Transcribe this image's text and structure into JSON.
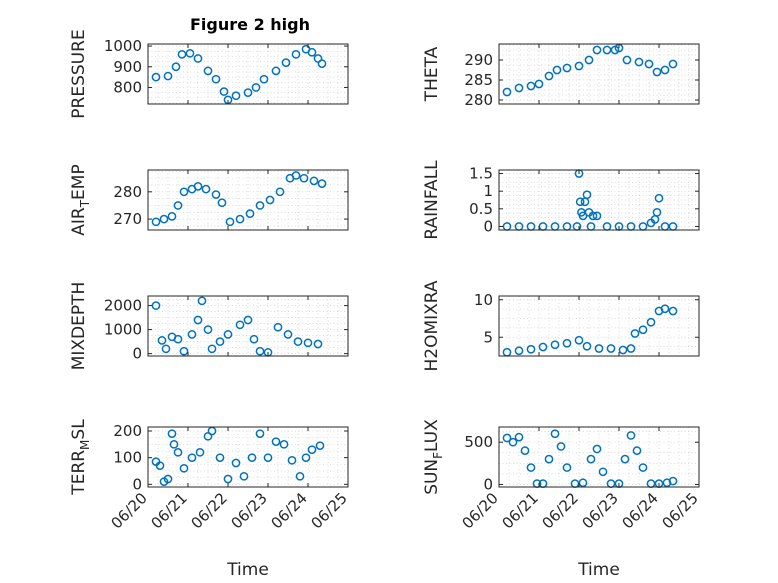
{
  "figure_title": "Figure 2 high",
  "colors": {
    "marker": "#0072BD",
    "axis": "#262626"
  },
  "chart_data": [
    {
      "type": "scatter",
      "id": "pressure",
      "ylabel": "PRESSURE",
      "title": "Figure 2 high",
      "xlim": [
        "06/20",
        "06/25"
      ],
      "ylim": [
        720,
        1010
      ],
      "yticks": [
        800,
        900,
        1000
      ],
      "xticklabels": [],
      "xlabel": "",
      "grid": true,
      "marker": "circle",
      "points": [
        [
          20.2,
          850
        ],
        [
          20.5,
          855
        ],
        [
          20.7,
          900
        ],
        [
          20.85,
          960
        ],
        [
          21.05,
          965
        ],
        [
          21.25,
          940
        ],
        [
          21.5,
          880
        ],
        [
          21.7,
          840
        ],
        [
          21.9,
          780
        ],
        [
          22.0,
          740
        ],
        [
          22.2,
          760
        ],
        [
          22.5,
          775
        ],
        [
          22.7,
          800
        ],
        [
          22.9,
          840
        ],
        [
          23.2,
          880
        ],
        [
          23.45,
          920
        ],
        [
          23.7,
          960
        ],
        [
          23.95,
          985
        ],
        [
          24.1,
          970
        ],
        [
          24.25,
          940
        ],
        [
          24.35,
          915
        ]
      ]
    },
    {
      "type": "scatter",
      "id": "theta",
      "ylabel": "THETA",
      "xlim": [
        "06/20",
        "06/25"
      ],
      "ylim": [
        279,
        294
      ],
      "yticks": [
        280,
        285,
        290
      ],
      "xticklabels": [],
      "xlabel": "",
      "grid": true,
      "marker": "circle",
      "points": [
        [
          20.2,
          282
        ],
        [
          20.5,
          283
        ],
        [
          20.8,
          283.5
        ],
        [
          21.0,
          284
        ],
        [
          21.25,
          286
        ],
        [
          21.45,
          287.5
        ],
        [
          21.7,
          288
        ],
        [
          22.0,
          288.5
        ],
        [
          22.25,
          290
        ],
        [
          22.45,
          292.5
        ],
        [
          22.7,
          292.5
        ],
        [
          22.9,
          292.5
        ],
        [
          23.0,
          293
        ],
        [
          23.2,
          290
        ],
        [
          23.5,
          289.5
        ],
        [
          23.75,
          289
        ],
        [
          23.95,
          287
        ],
        [
          24.15,
          287.5
        ],
        [
          24.35,
          289
        ]
      ]
    },
    {
      "type": "scatter",
      "id": "air_temp",
      "ylabel": "AIR_TEMP",
      "xlim": [
        "06/20",
        "06/25"
      ],
      "ylim": [
        266,
        288
      ],
      "yticks": [
        270,
        280
      ],
      "xticklabels": [],
      "xlabel": "",
      "grid": true,
      "marker": "circle",
      "points": [
        [
          20.2,
          269
        ],
        [
          20.4,
          270
        ],
        [
          20.6,
          271
        ],
        [
          20.75,
          275
        ],
        [
          20.9,
          280
        ],
        [
          21.1,
          281
        ],
        [
          21.25,
          282
        ],
        [
          21.45,
          281
        ],
        [
          21.7,
          279
        ],
        [
          21.85,
          276
        ],
        [
          22.05,
          269
        ],
        [
          22.3,
          270
        ],
        [
          22.55,
          272
        ],
        [
          22.8,
          275
        ],
        [
          23.05,
          277
        ],
        [
          23.3,
          280
        ],
        [
          23.55,
          285
        ],
        [
          23.7,
          286
        ],
        [
          23.9,
          285
        ],
        [
          24.15,
          284
        ],
        [
          24.35,
          283
        ]
      ]
    },
    {
      "type": "scatter",
      "id": "rainfall",
      "ylabel": "RAINFALL",
      "xlim": [
        "06/20",
        "06/25"
      ],
      "ylim": [
        -0.1,
        1.6
      ],
      "yticks": [
        0,
        0.5,
        1,
        1.5
      ],
      "xticklabels": [],
      "xlabel": "",
      "grid": true,
      "marker": "circle",
      "points": [
        [
          20.2,
          0
        ],
        [
          20.5,
          0
        ],
        [
          20.8,
          0
        ],
        [
          21.1,
          0
        ],
        [
          21.4,
          0
        ],
        [
          21.7,
          0
        ],
        [
          21.95,
          0
        ],
        [
          22.0,
          1.5
        ],
        [
          22.03,
          0.7
        ],
        [
          22.06,
          0.4
        ],
        [
          22.1,
          0.3
        ],
        [
          22.15,
          0.7
        ],
        [
          22.2,
          0.9
        ],
        [
          22.25,
          0.4
        ],
        [
          22.3,
          0
        ],
        [
          22.35,
          0.3
        ],
        [
          22.45,
          0.3
        ],
        [
          22.7,
          0
        ],
        [
          23.0,
          0
        ],
        [
          23.3,
          0
        ],
        [
          23.6,
          0
        ],
        [
          23.8,
          0.1
        ],
        [
          23.9,
          0.2
        ],
        [
          23.95,
          0.4
        ],
        [
          24.0,
          0.8
        ],
        [
          24.15,
          0
        ],
        [
          24.35,
          0
        ]
      ]
    },
    {
      "type": "scatter",
      "id": "mixdepth",
      "ylabel": "MIXDEPTH",
      "xlim": [
        "06/20",
        "06/25"
      ],
      "ylim": [
        -100,
        2400
      ],
      "yticks": [
        0,
        1000,
        2000
      ],
      "xticklabels": [],
      "xlabel": "",
      "grid": true,
      "marker": "circle",
      "points": [
        [
          20.2,
          2000
        ],
        [
          20.35,
          550
        ],
        [
          20.45,
          200
        ],
        [
          20.6,
          700
        ],
        [
          20.75,
          600
        ],
        [
          20.9,
          100
        ],
        [
          21.1,
          800
        ],
        [
          21.25,
          1400
        ],
        [
          21.35,
          2200
        ],
        [
          21.5,
          1000
        ],
        [
          21.6,
          200
        ],
        [
          21.8,
          500
        ],
        [
          22.0,
          800
        ],
        [
          22.3,
          1200
        ],
        [
          22.5,
          1400
        ],
        [
          22.65,
          600
        ],
        [
          22.8,
          100
        ],
        [
          23.0,
          50
        ],
        [
          23.25,
          1100
        ],
        [
          23.5,
          800
        ],
        [
          23.75,
          500
        ],
        [
          24.0,
          450
        ],
        [
          24.25,
          400
        ]
      ]
    },
    {
      "type": "scatter",
      "id": "h2omixra",
      "ylabel": "H2OMIXRA",
      "xlim": [
        "06/20",
        "06/25"
      ],
      "ylim": [
        2.5,
        10.5
      ],
      "yticks": [
        5,
        10
      ],
      "xticklabels": [],
      "xlabel": "",
      "grid": true,
      "marker": "circle",
      "points": [
        [
          20.2,
          3
        ],
        [
          20.5,
          3.2
        ],
        [
          20.8,
          3.4
        ],
        [
          21.1,
          3.7
        ],
        [
          21.4,
          4
        ],
        [
          21.7,
          4.2
        ],
        [
          22.0,
          4.6
        ],
        [
          22.2,
          3.8
        ],
        [
          22.5,
          3.5
        ],
        [
          22.8,
          3.5
        ],
        [
          23.1,
          3.3
        ],
        [
          23.3,
          3.5
        ],
        [
          23.4,
          5.5
        ],
        [
          23.6,
          6
        ],
        [
          23.8,
          7
        ],
        [
          24.0,
          8.5
        ],
        [
          24.15,
          8.8
        ],
        [
          24.35,
          8.5
        ]
      ]
    },
    {
      "type": "scatter",
      "id": "terr_msl",
      "ylabel": "TERR_MSL",
      "xlim": [
        "06/20",
        "06/25"
      ],
      "ylim": [
        -10,
        215
      ],
      "yticks": [
        0,
        100,
        200
      ],
      "xticklabels": [
        "06/20",
        "06/21",
        "06/22",
        "06/23",
        "06/24",
        "06/25"
      ],
      "xlabel": "Time",
      "grid": true,
      "marker": "circle",
      "points": [
        [
          20.2,
          85
        ],
        [
          20.3,
          70
        ],
        [
          20.4,
          10
        ],
        [
          20.5,
          20
        ],
        [
          20.6,
          190
        ],
        [
          20.65,
          150
        ],
        [
          20.75,
          120
        ],
        [
          20.9,
          60
        ],
        [
          21.1,
          100
        ],
        [
          21.3,
          120
        ],
        [
          21.5,
          180
        ],
        [
          21.6,
          200
        ],
        [
          21.8,
          100
        ],
        [
          22.0,
          20
        ],
        [
          22.2,
          80
        ],
        [
          22.4,
          30
        ],
        [
          22.6,
          100
        ],
        [
          22.8,
          190
        ],
        [
          23.0,
          100
        ],
        [
          23.2,
          160
        ],
        [
          23.4,
          150
        ],
        [
          23.6,
          90
        ],
        [
          23.8,
          30
        ],
        [
          23.95,
          100
        ],
        [
          24.1,
          130
        ],
        [
          24.3,
          145
        ]
      ]
    },
    {
      "type": "scatter",
      "id": "sunflux",
      "ylabel": "SUN_FLUX",
      "xlim": [
        "06/20",
        "06/25"
      ],
      "ylim": [
        -30,
        680
      ],
      "yticks": [
        0,
        500
      ],
      "xticklabels": [
        "06/20",
        "06/21",
        "06/22",
        "06/23",
        "06/24",
        "06/25"
      ],
      "xlabel": "Time",
      "grid": true,
      "marker": "circle",
      "points": [
        [
          20.2,
          550
        ],
        [
          20.35,
          500
        ],
        [
          20.5,
          560
        ],
        [
          20.65,
          400
        ],
        [
          20.8,
          200
        ],
        [
          20.95,
          10
        ],
        [
          21.1,
          10
        ],
        [
          21.25,
          300
        ],
        [
          21.4,
          600
        ],
        [
          21.55,
          450
        ],
        [
          21.7,
          200
        ],
        [
          21.9,
          10
        ],
        [
          22.1,
          20
        ],
        [
          22.3,
          300
        ],
        [
          22.45,
          420
        ],
        [
          22.6,
          150
        ],
        [
          22.8,
          10
        ],
        [
          23.0,
          10
        ],
        [
          23.15,
          300
        ],
        [
          23.3,
          580
        ],
        [
          23.45,
          400
        ],
        [
          23.6,
          200
        ],
        [
          23.8,
          10
        ],
        [
          24.0,
          10
        ],
        [
          24.2,
          20
        ],
        [
          24.35,
          40
        ]
      ]
    }
  ]
}
